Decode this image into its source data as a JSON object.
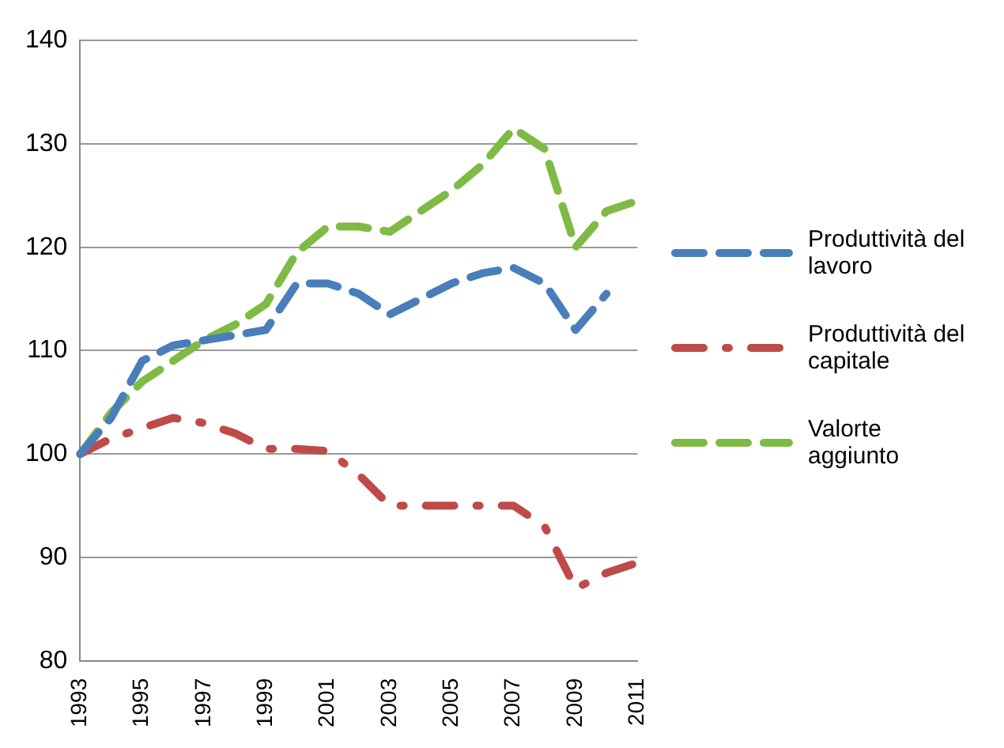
{
  "chart_data": {
    "type": "line",
    "categories": [
      "1993",
      null,
      "1995",
      null,
      "1997",
      null,
      "1999",
      null,
      "2001",
      null,
      "2003",
      null,
      "2005",
      null,
      "2007",
      null,
      "2009",
      null,
      "2011"
    ],
    "series": [
      {
        "name": "Produttività del lavoro",
        "color": "#4a7ebb",
        "line_style": "dashed",
        "values": [
          100,
          103.5,
          109,
          110.5,
          111,
          111.5,
          112,
          116.5,
          116.5,
          115.5,
          113.5,
          115,
          116.5,
          117.5,
          118,
          116.5,
          112,
          115.5,
          null
        ]
      },
      {
        "name": "Produttività del capitale",
        "color": "#be4b48",
        "line_style": "dashdot",
        "values": [
          100,
          101.5,
          102.5,
          103.5,
          103,
          102,
          100.5,
          100.5,
          100.3,
          98,
          95,
          95,
          95,
          95,
          95,
          93,
          87,
          88.5,
          89.5
        ]
      },
      {
        "name": "Valorte aggiunto",
        "color": "#7fba45",
        "line_style": "dashed",
        "values": [
          100,
          104,
          107,
          109,
          111,
          112.5,
          114.5,
          119.5,
          122,
          122,
          121.5,
          123.5,
          125.5,
          128,
          131.5,
          129.5,
          120,
          123.5,
          124.5
        ]
      }
    ],
    "ylim": [
      80,
      140
    ],
    "yticks": [
      80,
      90,
      100,
      110,
      120,
      130,
      140
    ],
    "grid": "y",
    "legend": "right",
    "marker": "none"
  }
}
